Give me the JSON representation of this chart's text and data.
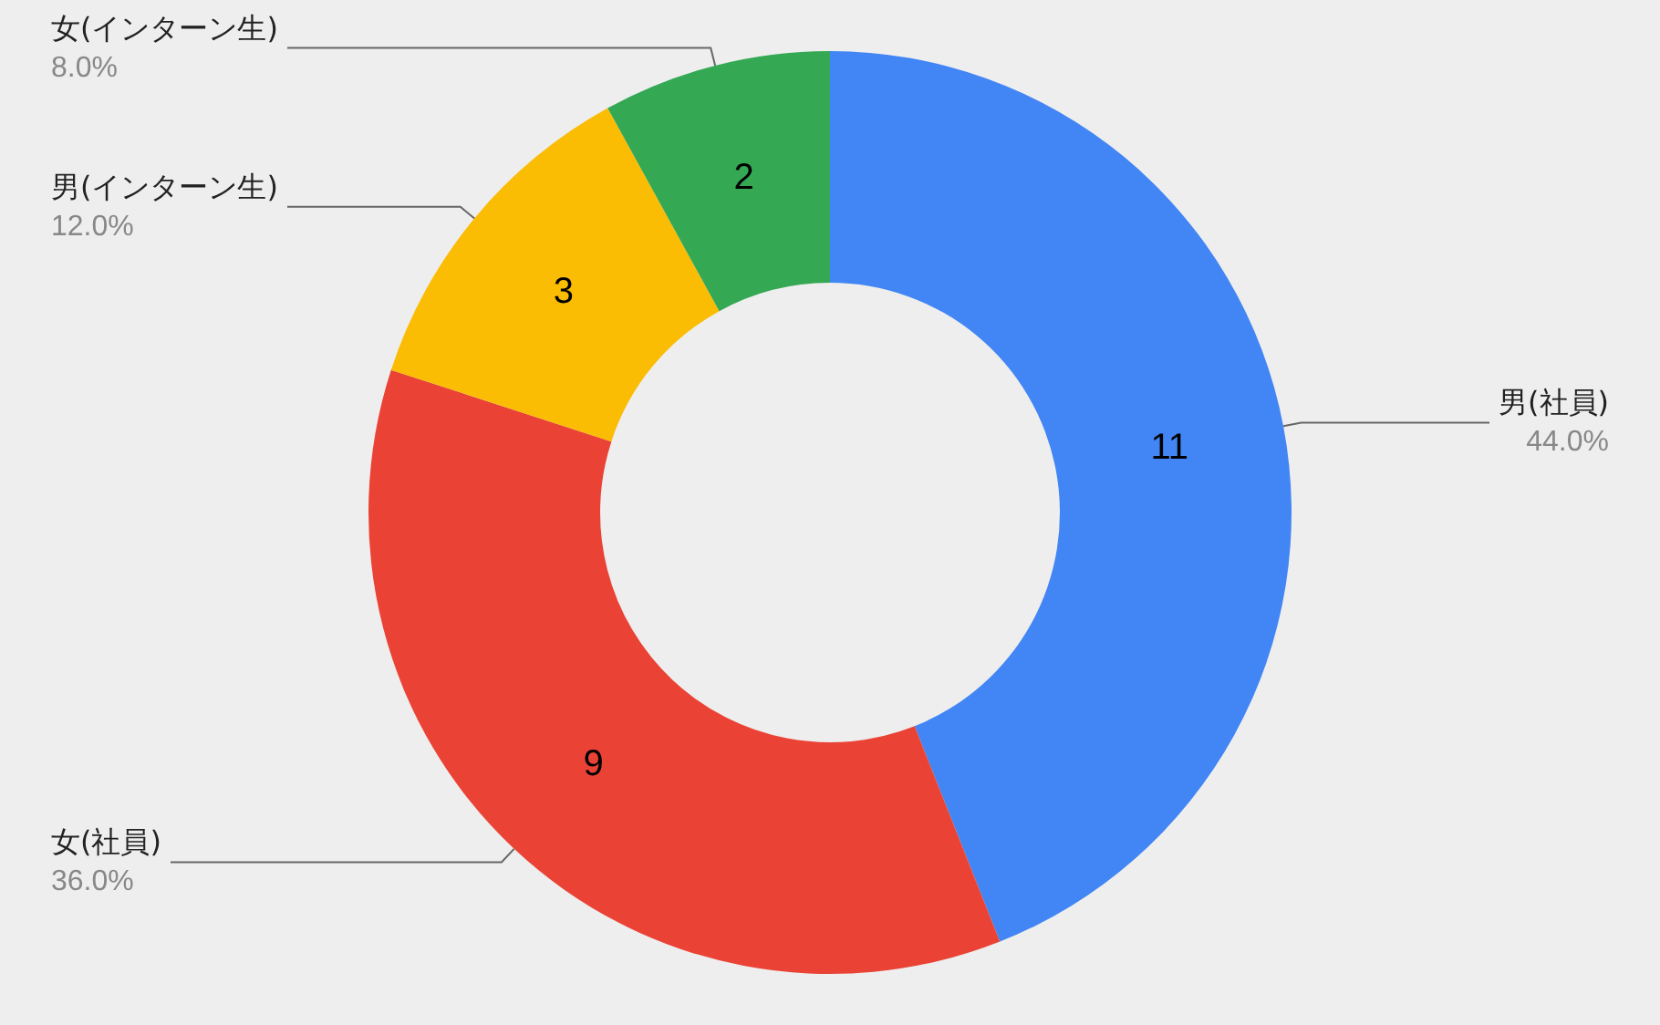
{
  "chart_data": {
    "type": "donut",
    "categories": [
      "男(社員)",
      "女(社員)",
      "男(インターン生)",
      "女(インターン生)"
    ],
    "values": [
      11,
      9,
      3,
      2
    ],
    "colors": [
      "#4285f4",
      "#ea4335",
      "#fbbc04",
      "#34a853"
    ],
    "data_labels": true,
    "annotations": [
      "44.0%",
      "36.0%",
      "12.0%",
      "8.0%"
    ],
    "legend": false
  }
}
